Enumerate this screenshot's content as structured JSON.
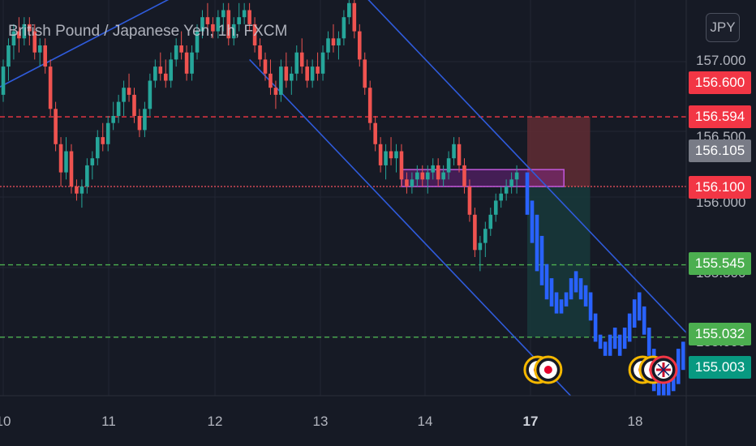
{
  "chart_title": "British Pound / Japanese Yen, 1h, FXCM",
  "currency_button": "JPY",
  "colors": {
    "background": "#161a25",
    "up": "#26a69a",
    "down": "#ef5350",
    "projection": "#2962ff",
    "channel": "#2f5bdb",
    "stop_zone": "#6b2f35",
    "target_zone": "#173a3b",
    "entry_box": "#9c27b0"
  },
  "price_axis_ticks": [
    "157.000",
    "156.500",
    "156.000",
    "155.500",
    "155.000"
  ],
  "price_badges": [
    {
      "label": "156.600",
      "color": "#f23645"
    },
    {
      "label": "156.594",
      "color": "#f23645"
    },
    {
      "label": "156.105",
      "color": "#787b86"
    },
    {
      "label": "156.100",
      "color": "#f23645"
    },
    {
      "label": "155.545",
      "color": "#4caf50"
    },
    {
      "label": "155.032",
      "color": "#4caf50"
    },
    {
      "label": "155.003",
      "color": "#089981"
    }
  ],
  "time_axis_ticks": [
    {
      "label": "10",
      "bold": false
    },
    {
      "label": "11",
      "bold": false
    },
    {
      "label": "12",
      "bold": false
    },
    {
      "label": "13",
      "bold": false
    },
    {
      "label": "14",
      "bold": false
    },
    {
      "label": "17",
      "bold": true
    },
    {
      "label": "18",
      "bold": false
    }
  ],
  "chart_data": {
    "type": "candlestick",
    "symbol": "GBPJPY",
    "interval": "1h",
    "source": "FXCM",
    "ylim": [
      154.6,
      157.4
    ],
    "xlim": [
      0,
      132
    ],
    "horizontal_levels": [
      {
        "price": 156.594,
        "style": "dashed",
        "color": "#f23645"
      },
      {
        "price": 156.1,
        "style": "dotted",
        "color": "#f7525f"
      },
      {
        "price": 155.545,
        "style": "dashed",
        "color": "#4caf50"
      },
      {
        "price": 155.032,
        "style": "dashed",
        "color": "#4caf50"
      }
    ],
    "trade_setup": {
      "entry": 156.1,
      "stop": 156.594,
      "target": 155.032,
      "x_start": 100,
      "x_end": 112
    },
    "entry_box": {
      "top": 156.22,
      "bottom": 156.1,
      "x_start": 76,
      "x_end": 107
    },
    "channel_lines": [
      {
        "x1": -2,
        "y1": 156.78,
        "x2": 38,
        "y2": 157.55
      },
      {
        "x1": 47,
        "y1": 157.0,
        "x2": 110,
        "y2": 154.55
      },
      {
        "x1": 69,
        "y1": 157.45,
        "x2": 132,
        "y2": 155.0
      }
    ],
    "candles": [
      [
        156.75,
        157.0,
        156.7,
        156.95
      ],
      [
        156.95,
        157.15,
        156.85,
        157.1
      ],
      [
        157.1,
        157.25,
        157.0,
        157.2
      ],
      [
        157.2,
        157.3,
        157.05,
        157.15
      ],
      [
        157.15,
        157.3,
        157.1,
        157.25
      ],
      [
        157.25,
        157.3,
        157.1,
        157.2
      ],
      [
        157.2,
        157.25,
        157.0,
        157.05
      ],
      [
        157.05,
        157.15,
        156.95,
        157.1
      ],
      [
        157.1,
        157.15,
        156.9,
        156.95
      ],
      [
        156.95,
        157.0,
        156.6,
        156.65
      ],
      [
        156.65,
        156.7,
        156.35,
        156.4
      ],
      [
        156.4,
        156.45,
        156.1,
        156.2
      ],
      [
        156.2,
        156.45,
        156.15,
        156.35
      ],
      [
        156.35,
        156.4,
        156.05,
        156.1
      ],
      [
        156.1,
        156.15,
        156.0,
        156.05
      ],
      [
        156.05,
        156.15,
        155.95,
        156.1
      ],
      [
        156.1,
        156.3,
        156.05,
        156.25
      ],
      [
        156.25,
        156.35,
        156.15,
        156.3
      ],
      [
        156.3,
        156.5,
        156.25,
        156.45
      ],
      [
        156.45,
        156.55,
        156.35,
        156.4
      ],
      [
        156.4,
        156.6,
        156.35,
        156.55
      ],
      [
        156.55,
        156.7,
        156.5,
        156.6
      ],
      [
        156.6,
        156.75,
        156.55,
        156.7
      ],
      [
        156.7,
        156.85,
        156.6,
        156.8
      ],
      [
        156.8,
        156.9,
        156.7,
        156.75
      ],
      [
        156.75,
        156.8,
        156.55,
        156.6
      ],
      [
        156.6,
        156.65,
        156.45,
        156.5
      ],
      [
        156.5,
        156.7,
        156.45,
        156.65
      ],
      [
        156.65,
        156.9,
        156.6,
        156.85
      ],
      [
        156.85,
        157.0,
        156.8,
        156.95
      ],
      [
        156.95,
        157.05,
        156.85,
        156.9
      ],
      [
        156.9,
        157.0,
        156.8,
        156.85
      ],
      [
        156.85,
        157.05,
        156.8,
        157.0
      ],
      [
        157.0,
        157.15,
        156.95,
        157.1
      ],
      [
        157.1,
        157.2,
        157.0,
        157.05
      ],
      [
        157.05,
        157.1,
        156.85,
        156.9
      ],
      [
        156.9,
        157.1,
        156.85,
        157.05
      ],
      [
        157.05,
        157.25,
        157.0,
        157.2
      ],
      [
        157.2,
        157.35,
        157.15,
        157.3
      ],
      [
        157.3,
        157.4,
        157.2,
        157.25
      ],
      [
        157.25,
        157.3,
        157.15,
        157.2
      ],
      [
        157.2,
        157.35,
        157.15,
        157.3
      ],
      [
        157.3,
        157.4,
        157.2,
        157.35
      ],
      [
        157.35,
        157.4,
        157.1,
        157.15
      ],
      [
        157.15,
        157.3,
        157.1,
        157.25
      ],
      [
        157.25,
        157.4,
        157.2,
        157.3
      ],
      [
        157.3,
        157.4,
        157.25,
        157.35
      ],
      [
        157.35,
        157.4,
        157.2,
        157.25
      ],
      [
        157.25,
        157.3,
        157.05,
        157.1
      ],
      [
        157.1,
        157.15,
        156.95,
        157.0
      ],
      [
        157.0,
        157.05,
        156.85,
        156.9
      ],
      [
        156.9,
        157.0,
        156.75,
        156.8
      ],
      [
        156.8,
        156.85,
        156.65,
        156.75
      ],
      [
        156.75,
        157.0,
        156.7,
        156.95
      ],
      [
        156.95,
        157.05,
        156.8,
        156.85
      ],
      [
        156.85,
        156.95,
        156.75,
        156.9
      ],
      [
        156.9,
        157.1,
        156.85,
        157.05
      ],
      [
        157.05,
        157.15,
        156.9,
        156.95
      ],
      [
        156.95,
        157.0,
        156.8,
        156.85
      ],
      [
        156.85,
        157.0,
        156.8,
        156.95
      ],
      [
        156.95,
        157.05,
        156.85,
        156.9
      ],
      [
        156.9,
        157.1,
        156.85,
        157.05
      ],
      [
        157.05,
        157.2,
        157.0,
        157.15
      ],
      [
        157.15,
        157.25,
        157.05,
        157.1
      ],
      [
        157.1,
        157.2,
        157.0,
        157.15
      ],
      [
        157.15,
        157.35,
        157.1,
        157.3
      ],
      [
        157.3,
        157.45,
        157.25,
        157.4
      ],
      [
        157.4,
        157.45,
        157.15,
        157.2
      ],
      [
        157.2,
        157.25,
        156.95,
        157.0
      ],
      [
        157.0,
        157.05,
        156.75,
        156.8
      ],
      [
        156.8,
        156.85,
        156.5,
        156.55
      ],
      [
        156.55,
        156.6,
        156.35,
        156.4
      ],
      [
        156.4,
        156.45,
        156.2,
        156.25
      ],
      [
        156.25,
        156.4,
        156.15,
        156.35
      ],
      [
        156.35,
        156.45,
        156.25,
        156.3
      ],
      [
        156.3,
        156.4,
        156.2,
        156.35
      ],
      [
        156.35,
        156.4,
        156.1,
        156.15
      ],
      [
        156.15,
        156.2,
        156.05,
        156.1
      ],
      [
        156.1,
        156.2,
        156.05,
        156.15
      ],
      [
        156.15,
        156.25,
        156.1,
        156.2
      ],
      [
        156.2,
        156.25,
        156.1,
        156.15
      ],
      [
        156.15,
        156.25,
        156.05,
        156.2
      ],
      [
        156.2,
        156.3,
        156.15,
        156.25
      ],
      [
        156.25,
        156.3,
        156.1,
        156.15
      ],
      [
        156.15,
        156.25,
        156.1,
        156.2
      ],
      [
        156.2,
        156.35,
        156.15,
        156.3
      ],
      [
        156.3,
        156.45,
        156.25,
        156.4
      ],
      [
        156.4,
        156.45,
        156.2,
        156.25
      ],
      [
        156.25,
        156.3,
        156.05,
        156.1
      ],
      [
        156.1,
        156.15,
        155.85,
        155.9
      ],
      [
        155.9,
        155.95,
        155.6,
        155.65
      ],
      [
        155.65,
        155.75,
        155.5,
        155.7
      ],
      [
        155.7,
        155.85,
        155.6,
        155.8
      ],
      [
        155.8,
        155.95,
        155.75,
        155.9
      ],
      [
        155.9,
        156.05,
        155.85,
        156.0
      ],
      [
        156.0,
        156.1,
        155.95,
        156.05
      ],
      [
        156.05,
        156.15,
        156.0,
        156.1
      ],
      [
        156.1,
        156.2,
        156.05,
        156.15
      ],
      [
        156.15,
        156.25,
        156.05,
        156.2
      ]
    ],
    "projection": [
      [
        156.2,
        155.9
      ],
      [
        156.0,
        155.7
      ],
      [
        155.9,
        155.5
      ],
      [
        155.75,
        155.4
      ],
      [
        155.55,
        155.3
      ],
      [
        155.45,
        155.25
      ],
      [
        155.35,
        155.2
      ],
      [
        155.3,
        155.2
      ],
      [
        155.35,
        155.25
      ],
      [
        155.45,
        155.3
      ],
      [
        155.5,
        155.35
      ],
      [
        155.45,
        155.3
      ],
      [
        155.4,
        155.25
      ],
      [
        155.35,
        155.15
      ],
      [
        155.2,
        155.0
      ],
      [
        155.05,
        154.95
      ],
      [
        155.0,
        154.9
      ],
      [
        155.05,
        154.9
      ],
      [
        155.1,
        154.95
      ],
      [
        155.05,
        154.9
      ],
      [
        155.1,
        154.95
      ],
      [
        155.2,
        155.0
      ],
      [
        155.3,
        155.1
      ],
      [
        155.35,
        155.15
      ],
      [
        155.25,
        155.05
      ],
      [
        155.1,
        154.9
      ],
      [
        154.95,
        154.65
      ],
      [
        154.85,
        154.6
      ],
      [
        154.75,
        154.6
      ],
      [
        154.8,
        154.6
      ],
      [
        154.85,
        154.65
      ],
      [
        154.95,
        154.7
      ],
      [
        155.0,
        154.8
      ],
      [
        155.05,
        154.85
      ],
      [
        155.0,
        154.85
      ]
    ],
    "event_markers": [
      {
        "x": 102,
        "price": 154.8,
        "kind": "economic-event"
      },
      {
        "x": 104,
        "price": 154.8,
        "kind": "economic-event"
      },
      {
        "x": 122,
        "price": 154.8,
        "kind": "economic-event"
      },
      {
        "x": 124,
        "price": 154.8,
        "kind": "economic-event"
      },
      {
        "x": 126,
        "price": 154.8,
        "kind": "uk-event"
      }
    ]
  }
}
